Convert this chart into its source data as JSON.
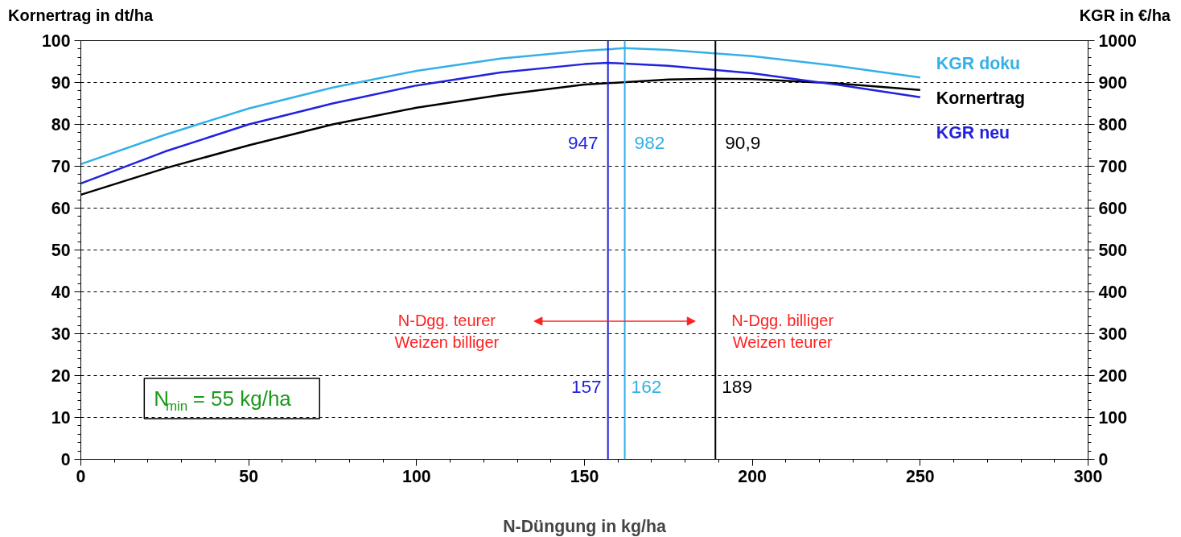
{
  "chart_data": {
    "type": "line",
    "xlabel": "N-Düngung in kg/ha",
    "ylabel": "Kornertrag in dt/ha",
    "y2label": "KGR in €/ha",
    "xlim": [
      0,
      300
    ],
    "xticks": [
      0,
      50,
      100,
      150,
      200,
      250,
      300
    ],
    "ylim": [
      0,
      100
    ],
    "yticks": [
      0,
      10,
      20,
      30,
      40,
      50,
      60,
      70,
      80,
      90,
      100
    ],
    "y2lim": [
      0,
      1000
    ],
    "y2ticks": [
      0,
      100,
      200,
      300,
      400,
      500,
      600,
      700,
      800,
      900,
      1000
    ],
    "grid": "y",
    "legend": false,
    "marker": "none",
    "line_style": "solid",
    "series": [
      {
        "name": "KGR doku",
        "color": "#33b0e8",
        "axis": "y2",
        "x": [
          0,
          25,
          50,
          75,
          100,
          125,
          150,
          162,
          175,
          200,
          225,
          250
        ],
        "values": [
          705,
          775,
          838,
          888,
          928,
          957,
          976,
          982,
          978,
          963,
          940,
          912
        ]
      },
      {
        "name": "Kornertrag",
        "color": "#000000",
        "x": [
          0,
          25,
          50,
          75,
          100,
          125,
          150,
          175,
          189,
          200,
          225,
          250
        ],
        "values": [
          63.2,
          69.5,
          75,
          80,
          84,
          87,
          89.5,
          90.7,
          90.9,
          90.8,
          89.8,
          88.2
        ]
      },
      {
        "name": "KGR neu",
        "color": "#2222dd",
        "axis": "y2",
        "x": [
          0,
          25,
          50,
          75,
          100,
          125,
          150,
          157,
          175,
          200,
          225,
          250
        ],
        "values": [
          659,
          735,
          800,
          850,
          893,
          924,
          944,
          947,
          940,
          922,
          895,
          865
        ]
      }
    ],
    "ref_lines": [
      {
        "axis": "x",
        "value": 157,
        "label": "157",
        "color": "#2222dd"
      },
      {
        "axis": "x",
        "value": 162,
        "label": "162",
        "color": "#33b0e8"
      },
      {
        "axis": "x",
        "value": 189,
        "label": "189",
        "color": "#000000"
      }
    ],
    "annotations": [
      "947",
      "982",
      "90,9",
      "N-Dgg. teurer\nWeizen billiger",
      "N-Dgg. billiger\nWeizen teurer",
      "N$_{min}$ = 55 kg/ha"
    ]
  }
}
